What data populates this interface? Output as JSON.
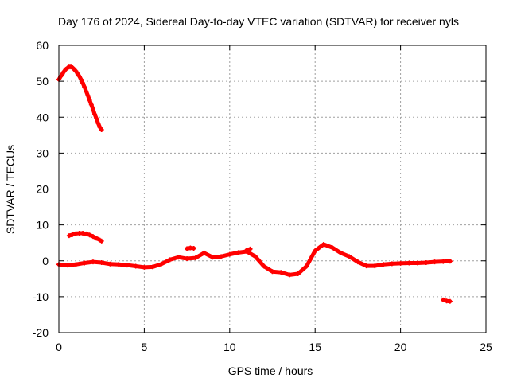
{
  "chart_data": {
    "type": "scatter",
    "title": "Day 176 of 2024, Sidereal Day-to-day VTEC variation (SDTVAR) for receiver nyls",
    "xlabel": "GPS time / hours",
    "ylabel": "SDTVAR / TECUs",
    "xlim": [
      0,
      25
    ],
    "ylim": [
      -20,
      60
    ],
    "xticks": [
      0,
      5,
      10,
      15,
      20,
      25
    ],
    "yticks": [
      -20,
      -10,
      0,
      10,
      20,
      30,
      40,
      50,
      60
    ],
    "xtick_labels": [
      "0",
      "5",
      "10",
      "15",
      "20",
      "25"
    ],
    "ytick_labels": [
      "-20",
      "-10",
      "0",
      "10",
      "20",
      "30",
      "40",
      "50",
      "60"
    ],
    "grid": true,
    "marker_color": "#ff0000",
    "series": [
      {
        "name": "high-arc",
        "x": [
          0.0,
          0.1,
          0.2,
          0.3,
          0.4,
          0.5,
          0.6,
          0.7,
          0.8,
          0.9,
          1.0,
          1.1,
          1.2,
          1.3,
          1.4,
          1.5,
          1.6,
          1.7,
          1.8,
          1.9,
          2.0,
          2.1,
          2.2,
          2.3,
          2.4,
          2.5
        ],
        "y": [
          50.5,
          51.3,
          52.0,
          52.7,
          53.3,
          53.7,
          54.0,
          54.0,
          53.8,
          53.3,
          52.8,
          52.1,
          51.4,
          50.5,
          49.5,
          48.4,
          47.2,
          46.0,
          44.7,
          43.5,
          42.2,
          40.8,
          39.6,
          38.3,
          37.2,
          36.5
        ]
      },
      {
        "name": "mid-arc",
        "x": [
          0.6,
          0.8,
          1.0,
          1.2,
          1.4,
          1.6,
          1.8,
          2.0,
          2.2,
          2.4,
          2.5
        ],
        "y": [
          7.0,
          7.3,
          7.6,
          7.7,
          7.7,
          7.5,
          7.2,
          6.8,
          6.3,
          5.8,
          5.5
        ]
      },
      {
        "name": "main-trace",
        "x": [
          0.0,
          0.5,
          1.0,
          1.5,
          2.0,
          2.5,
          3.0,
          3.5,
          4.0,
          4.5,
          5.0,
          5.5,
          6.0,
          6.5,
          7.0,
          7.5,
          8.0,
          8.5,
          9.0,
          9.5,
          10.0,
          10.5,
          11.0,
          11.5,
          12.0,
          12.5,
          13.0,
          13.5,
          14.0,
          14.5,
          15.0,
          15.5,
          16.0,
          16.5,
          17.0,
          17.5,
          18.0,
          18.5,
          19.0,
          19.5,
          20.0,
          20.5,
          21.0,
          21.5,
          22.0,
          22.5,
          22.9
        ],
        "y": [
          -1.0,
          -1.2,
          -1.0,
          -0.6,
          -0.3,
          -0.5,
          -0.9,
          -1.0,
          -1.2,
          -1.5,
          -1.8,
          -1.7,
          -0.9,
          0.3,
          1.0,
          0.6,
          0.8,
          2.2,
          1.0,
          1.2,
          1.8,
          2.3,
          2.6,
          1.2,
          -1.5,
          -3.0,
          -3.2,
          -3.9,
          -3.6,
          -1.5,
          2.8,
          4.6,
          3.7,
          2.2,
          1.2,
          -0.3,
          -1.4,
          -1.4,
          -1.0,
          -0.8,
          -0.7,
          -0.6,
          -0.6,
          -0.5,
          -0.3,
          -0.2,
          -0.1
        ]
      },
      {
        "name": "low-segment",
        "x": [
          22.5,
          22.7,
          22.9
        ],
        "y": [
          -10.9,
          -11.2,
          -11.3
        ]
      },
      {
        "name": "spot-a",
        "x": [
          7.5,
          7.7,
          7.9
        ],
        "y": [
          3.4,
          3.6,
          3.5
        ]
      },
      {
        "name": "spot-b",
        "x": [
          11.0,
          11.2
        ],
        "y": [
          3.0,
          3.3
        ]
      }
    ]
  }
}
